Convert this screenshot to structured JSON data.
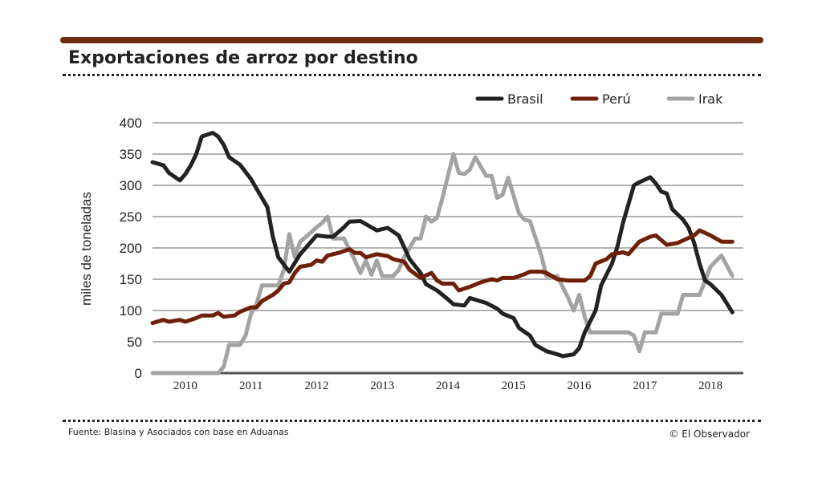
{
  "title": "Exportaciones de arroz por destino",
  "source": "Fuente: Blasina y Asociados con base en Aduanas",
  "credit": "© El Observador",
  "chart_data": {
    "type": "line",
    "title": "Exportaciones de arroz por destino",
    "xlabel": "",
    "ylabel": "miles de toneladas",
    "ylim": [
      0,
      400
    ],
    "yticks": [
      0,
      50,
      100,
      150,
      200,
      250,
      300,
      350,
      400
    ],
    "xticks": [
      "2010",
      "2011",
      "2012",
      "2013",
      "2014",
      "2015",
      "2016",
      "2017",
      "2018"
    ],
    "xlim": [
      "2010-01",
      "2018-12"
    ],
    "grid": "horizontal",
    "legend": "top-right",
    "series": [
      {
        "name": "Brasil",
        "color": "#222222",
        "points": [
          [
            "2010-01",
            337
          ],
          [
            "2010-03",
            332
          ],
          [
            "2010-04",
            320
          ],
          [
            "2010-06",
            308
          ],
          [
            "2010-07",
            318
          ],
          [
            "2010-08",
            332
          ],
          [
            "2010-09",
            350
          ],
          [
            "2010-10",
            378
          ],
          [
            "2010-12",
            384
          ],
          [
            "2011-01",
            378
          ],
          [
            "2011-02",
            365
          ],
          [
            "2011-03",
            345
          ],
          [
            "2011-05",
            333
          ],
          [
            "2011-07",
            310
          ],
          [
            "2011-09",
            280
          ],
          [
            "2011-10",
            265
          ],
          [
            "2011-11",
            218
          ],
          [
            "2011-12",
            185
          ],
          [
            "2012-02",
            162
          ],
          [
            "2012-04",
            190
          ],
          [
            "2012-06",
            210
          ],
          [
            "2012-07",
            220
          ],
          [
            "2012-09",
            218
          ],
          [
            "2012-10",
            218
          ],
          [
            "2012-12",
            233
          ],
          [
            "2013-01",
            242
          ],
          [
            "2013-03",
            243
          ],
          [
            "2013-06",
            228
          ],
          [
            "2013-08",
            232
          ],
          [
            "2013-10",
            220
          ],
          [
            "2013-12",
            182
          ],
          [
            "2014-02",
            160
          ],
          [
            "2014-03",
            142
          ],
          [
            "2014-05",
            132
          ],
          [
            "2014-07",
            118
          ],
          [
            "2014-08",
            110
          ],
          [
            "2014-10",
            108
          ],
          [
            "2014-11",
            120
          ],
          [
            "2015-02",
            112
          ],
          [
            "2015-04",
            103
          ],
          [
            "2015-05",
            95
          ],
          [
            "2015-07",
            88
          ],
          [
            "2015-08",
            72
          ],
          [
            "2015-10",
            60
          ],
          [
            "2015-11",
            45
          ],
          [
            "2016-01",
            35
          ],
          [
            "2016-03",
            30
          ],
          [
            "2016-04",
            27
          ],
          [
            "2016-06",
            30
          ],
          [
            "2016-07",
            40
          ],
          [
            "2016-08",
            65
          ],
          [
            "2016-10",
            100
          ],
          [
            "2016-11",
            140
          ],
          [
            "2017-01",
            175
          ],
          [
            "2017-02",
            203
          ],
          [
            "2017-03",
            240
          ],
          [
            "2017-05",
            300
          ],
          [
            "2017-06",
            305
          ],
          [
            "2017-08",
            313
          ],
          [
            "2017-09",
            303
          ],
          [
            "2017-10",
            290
          ],
          [
            "2017-11",
            287
          ],
          [
            "2017-12",
            262
          ],
          [
            "2018-02",
            245
          ],
          [
            "2018-03",
            232
          ],
          [
            "2018-04",
            208
          ],
          [
            "2018-05",
            175
          ],
          [
            "2018-06",
            148
          ],
          [
            "2018-07",
            142
          ],
          [
            "2018-09",
            125
          ],
          [
            "2018-11",
            97
          ]
        ]
      },
      {
        "name": "Perú",
        "color": "#6e2008",
        "points": [
          [
            "2010-01",
            80
          ],
          [
            "2010-03",
            85
          ],
          [
            "2010-04",
            82
          ],
          [
            "2010-06",
            85
          ],
          [
            "2010-07",
            82
          ],
          [
            "2010-09",
            88
          ],
          [
            "2010-10",
            92
          ],
          [
            "2010-12",
            92
          ],
          [
            "2011-01",
            96
          ],
          [
            "2011-02",
            90
          ],
          [
            "2011-04",
            92
          ],
          [
            "2011-05",
            98
          ],
          [
            "2011-07",
            105
          ],
          [
            "2011-08",
            105
          ],
          [
            "2011-09",
            115
          ],
          [
            "2011-11",
            125
          ],
          [
            "2011-12",
            132
          ],
          [
            "2012-01",
            143
          ],
          [
            "2012-02",
            145
          ],
          [
            "2012-03",
            160
          ],
          [
            "2012-04",
            170
          ],
          [
            "2012-06",
            173
          ],
          [
            "2012-07",
            180
          ],
          [
            "2012-08",
            178
          ],
          [
            "2012-09",
            188
          ],
          [
            "2012-11",
            192
          ],
          [
            "2013-01",
            198
          ],
          [
            "2013-02",
            192
          ],
          [
            "2013-03",
            192
          ],
          [
            "2013-04",
            185
          ],
          [
            "2013-06",
            190
          ],
          [
            "2013-08",
            187
          ],
          [
            "2013-09",
            182
          ],
          [
            "2013-11",
            178
          ],
          [
            "2013-12",
            165
          ],
          [
            "2014-02",
            152
          ],
          [
            "2014-04",
            160
          ],
          [
            "2014-05",
            148
          ],
          [
            "2014-06",
            143
          ],
          [
            "2014-08",
            143
          ],
          [
            "2014-09",
            132
          ],
          [
            "2014-11",
            138
          ],
          [
            "2015-01",
            145
          ],
          [
            "2015-03",
            150
          ],
          [
            "2015-04",
            148
          ],
          [
            "2015-05",
            152
          ],
          [
            "2015-07",
            152
          ],
          [
            "2015-09",
            158
          ],
          [
            "2015-10",
            162
          ],
          [
            "2015-12",
            162
          ],
          [
            "2016-01",
            160
          ],
          [
            "2016-03",
            150
          ],
          [
            "2016-05",
            148
          ],
          [
            "2016-06",
            148
          ],
          [
            "2016-08",
            148
          ],
          [
            "2016-09",
            155
          ],
          [
            "2016-10",
            175
          ],
          [
            "2016-12",
            182
          ],
          [
            "2017-01",
            190
          ],
          [
            "2017-03",
            193
          ],
          [
            "2017-04",
            190
          ],
          [
            "2017-06",
            210
          ],
          [
            "2017-08",
            218
          ],
          [
            "2017-09",
            220
          ],
          [
            "2017-11",
            205
          ],
          [
            "2018-01",
            208
          ],
          [
            "2018-02",
            212
          ],
          [
            "2018-04",
            220
          ],
          [
            "2018-05",
            228
          ],
          [
            "2018-07",
            220
          ],
          [
            "2018-09",
            210
          ],
          [
            "2018-11",
            210
          ]
        ]
      },
      {
        "name": "Irak",
        "color": "#a3a3a3",
        "points": [
          [
            "2010-01",
            0
          ],
          [
            "2011-01",
            0
          ],
          [
            "2011-02",
            10
          ],
          [
            "2011-03",
            45
          ],
          [
            "2011-05",
            45
          ],
          [
            "2011-06",
            60
          ],
          [
            "2011-07",
            95
          ],
          [
            "2011-08",
            110
          ],
          [
            "2011-09",
            140
          ],
          [
            "2011-12",
            140
          ],
          [
            "2012-01",
            165
          ],
          [
            "2012-02",
            222
          ],
          [
            "2012-03",
            185
          ],
          [
            "2012-04",
            210
          ],
          [
            "2012-06",
            225
          ],
          [
            "2012-07",
            233
          ],
          [
            "2012-08",
            240
          ],
          [
            "2012-09",
            250
          ],
          [
            "2012-10",
            215
          ],
          [
            "2012-12",
            215
          ],
          [
            "2013-02",
            180
          ],
          [
            "2013-03",
            160
          ],
          [
            "2013-04",
            180
          ],
          [
            "2013-05",
            157
          ],
          [
            "2013-06",
            180
          ],
          [
            "2013-07",
            155
          ],
          [
            "2013-09",
            155
          ],
          [
            "2013-10",
            165
          ],
          [
            "2013-11",
            185
          ],
          [
            "2014-01",
            215
          ],
          [
            "2014-02",
            215
          ],
          [
            "2014-03",
            250
          ],
          [
            "2014-04",
            242
          ],
          [
            "2014-05",
            248
          ],
          [
            "2014-06",
            280
          ],
          [
            "2014-08",
            350
          ],
          [
            "2014-09",
            320
          ],
          [
            "2014-10",
            318
          ],
          [
            "2014-11",
            325
          ],
          [
            "2014-12",
            345
          ],
          [
            "2015-02",
            315
          ],
          [
            "2015-03",
            315
          ],
          [
            "2015-04",
            280
          ],
          [
            "2015-05",
            285
          ],
          [
            "2015-06",
            312
          ],
          [
            "2015-08",
            255
          ],
          [
            "2015-09",
            245
          ],
          [
            "2015-10",
            243
          ],
          [
            "2015-12",
            190
          ],
          [
            "2016-01",
            155
          ],
          [
            "2016-03",
            155
          ],
          [
            "2016-05",
            120
          ],
          [
            "2016-06",
            100
          ],
          [
            "2016-07",
            125
          ],
          [
            "2016-08",
            90
          ],
          [
            "2016-09",
            65
          ],
          [
            "2016-11",
            65
          ],
          [
            "2017-04",
            65
          ],
          [
            "2017-05",
            60
          ],
          [
            "2017-06",
            35
          ],
          [
            "2017-07",
            65
          ],
          [
            "2017-09",
            65
          ],
          [
            "2017-10",
            95
          ],
          [
            "2017-11",
            95
          ],
          [
            "2018-01",
            95
          ],
          [
            "2018-02",
            125
          ],
          [
            "2018-05",
            125
          ],
          [
            "2018-07",
            170
          ],
          [
            "2018-09",
            188
          ],
          [
            "2018-11",
            155
          ]
        ]
      }
    ]
  }
}
